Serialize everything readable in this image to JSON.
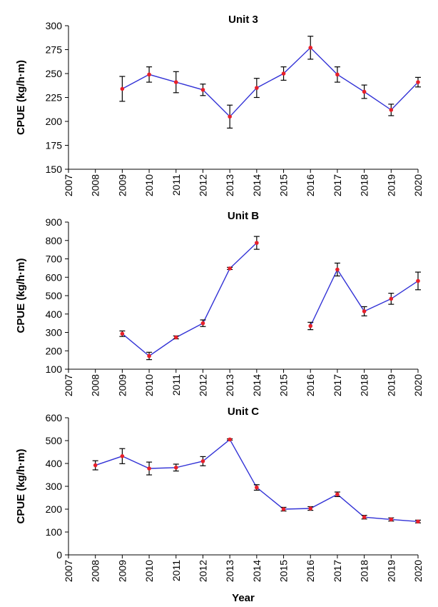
{
  "chart_data": [
    {
      "type": "line",
      "title": "Unit 3",
      "ylabel": "CPUE (kg/h·m)",
      "xlabel": "",
      "ylim": [
        150,
        300
      ],
      "yticks": [
        150,
        175,
        200,
        225,
        250,
        275,
        300
      ],
      "xticks": [
        2007,
        2008,
        2009,
        2010,
        2011,
        2012,
        2013,
        2014,
        2015,
        2016,
        2017,
        2018,
        2019,
        2020
      ],
      "series": [
        {
          "x": [
            2009,
            2010,
            2011,
            2012,
            2013,
            2014,
            2015,
            2016,
            2017,
            2018,
            2019,
            2020
          ],
          "values": [
            234,
            249,
            241,
            233,
            205,
            235,
            250,
            277,
            249,
            231,
            212,
            241
          ],
          "error": [
            13,
            8,
            11,
            6,
            12,
            10,
            7,
            12,
            8,
            7,
            6,
            5
          ]
        }
      ]
    },
    {
      "type": "line",
      "title": "Unit B",
      "ylabel": "CPUE (kg/h·m)",
      "xlabel": "",
      "ylim": [
        100,
        900
      ],
      "yticks": [
        100,
        200,
        300,
        400,
        500,
        600,
        700,
        800,
        900
      ],
      "xticks": [
        2007,
        2008,
        2009,
        2010,
        2011,
        2012,
        2013,
        2014,
        2015,
        2016,
        2017,
        2018,
        2019,
        2020
      ],
      "series": [
        {
          "x": [
            2009,
            2010,
            2011,
            2012,
            2013,
            2014
          ],
          "values": [
            293,
            172,
            273,
            350,
            648,
            787
          ],
          "error": [
            15,
            20,
            8,
            18,
            6,
            35
          ]
        },
        {
          "x": [
            2016,
            2017,
            2018,
            2019,
            2020
          ],
          "values": [
            335,
            642,
            415,
            483,
            580
          ],
          "error": [
            20,
            35,
            25,
            30,
            48
          ]
        }
      ]
    },
    {
      "type": "line",
      "title": "Unit C",
      "ylabel": "CPUE (kg/h·m)",
      "xlabel": "Year",
      "ylim": [
        0,
        600
      ],
      "yticks": [
        0,
        100,
        200,
        300,
        400,
        500,
        600
      ],
      "xticks": [
        2007,
        2008,
        2009,
        2010,
        2011,
        2012,
        2013,
        2014,
        2015,
        2016,
        2017,
        2018,
        2019,
        2020
      ],
      "series": [
        {
          "x": [
            2008,
            2009,
            2010,
            2011,
            2012,
            2013,
            2014,
            2015,
            2016,
            2017,
            2018,
            2019,
            2020
          ],
          "values": [
            392,
            432,
            378,
            382,
            410,
            505,
            295,
            200,
            203,
            265,
            165,
            155,
            146
          ],
          "error": [
            20,
            33,
            28,
            15,
            20,
            3,
            12,
            8,
            8,
            10,
            8,
            7,
            6
          ]
        }
      ]
    }
  ],
  "colors": {
    "line": "#3232d6",
    "marker": "#e8202a",
    "errorbar": "#000000",
    "axis": "#000000"
  }
}
